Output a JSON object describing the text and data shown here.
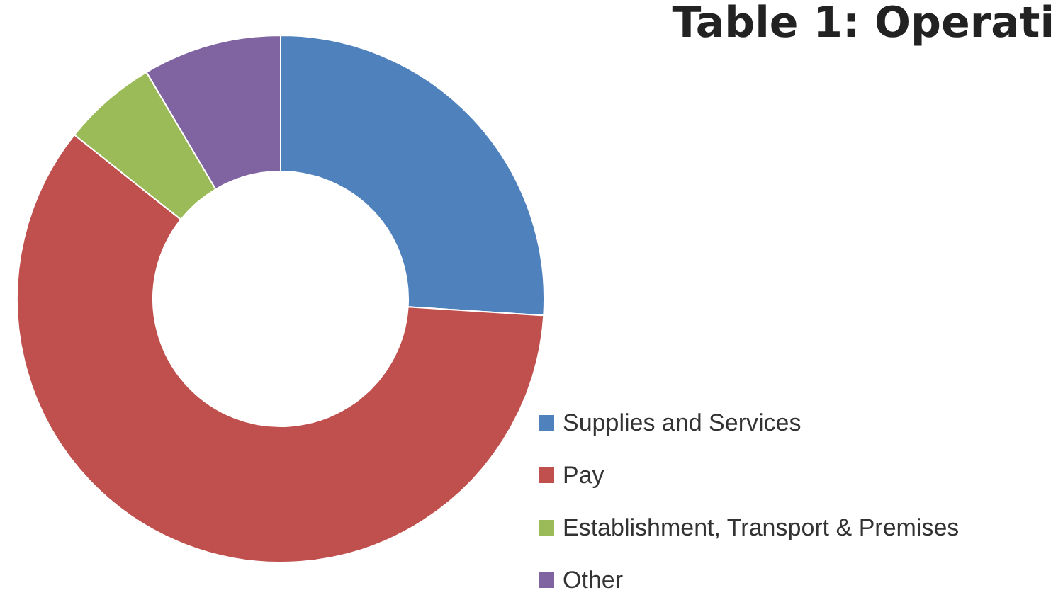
{
  "chart_data": {
    "type": "donut",
    "title": "Table 1: Operati",
    "categories": [
      "Supplies and Services",
      "Pay",
      "Establishment, Transport & Premises",
      "Other"
    ],
    "values": [
      26,
      59.7,
      5.8,
      8.5
    ],
    "colors": [
      "#4f81bd",
      "#c0504d",
      "#9bbb59",
      "#8064a2"
    ],
    "legend": "bottom right"
  }
}
